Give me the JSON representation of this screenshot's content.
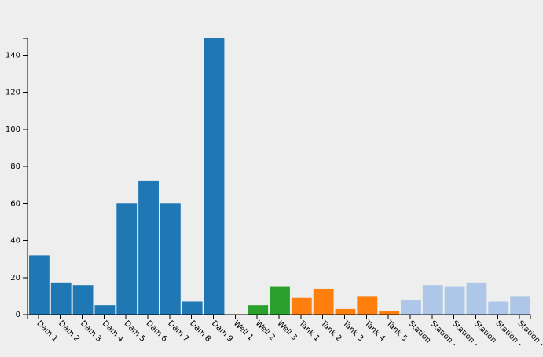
{
  "chart_data": {
    "type": "bar",
    "categories": [
      "Dam 1",
      "Dam 2",
      "Dam 3",
      "Dam 4",
      "Dam 5",
      "Dam 6",
      "Dam 7",
      "Dam 8",
      "Dam 9",
      "Well 1",
      "Well 2",
      "Well 3",
      "Tank 1",
      "Tank 2",
      "Tank 3",
      "Tank 4",
      "Tank 5",
      "Station",
      "Station -",
      "Station -",
      "Station",
      "Station -",
      "Station -"
    ],
    "values": [
      32,
      17,
      16,
      5,
      60,
      72,
      60,
      7,
      149,
      0,
      5,
      15,
      9,
      14,
      3,
      10,
      2,
      8,
      16,
      15,
      17,
      7,
      10
    ],
    "groups": [
      "Dam",
      "Dam",
      "Dam",
      "Dam",
      "Dam",
      "Dam",
      "Dam",
      "Dam",
      "Dam",
      "Well",
      "Well",
      "Well",
      "Tank",
      "Tank",
      "Tank",
      "Tank",
      "Tank",
      "Station",
      "Station",
      "Station",
      "Station",
      "Station",
      "Station"
    ],
    "group_colors": {
      "Dam": "#1f77b4",
      "Well": "#2ca02c",
      "Tank": "#ff7f0e",
      "Station": "#aec7e8"
    },
    "ylim": [
      0,
      149
    ],
    "yticks": [
      0,
      20,
      40,
      60,
      80,
      100,
      120,
      140
    ],
    "title": "",
    "xlabel": "",
    "ylabel": "",
    "grid": false
  }
}
